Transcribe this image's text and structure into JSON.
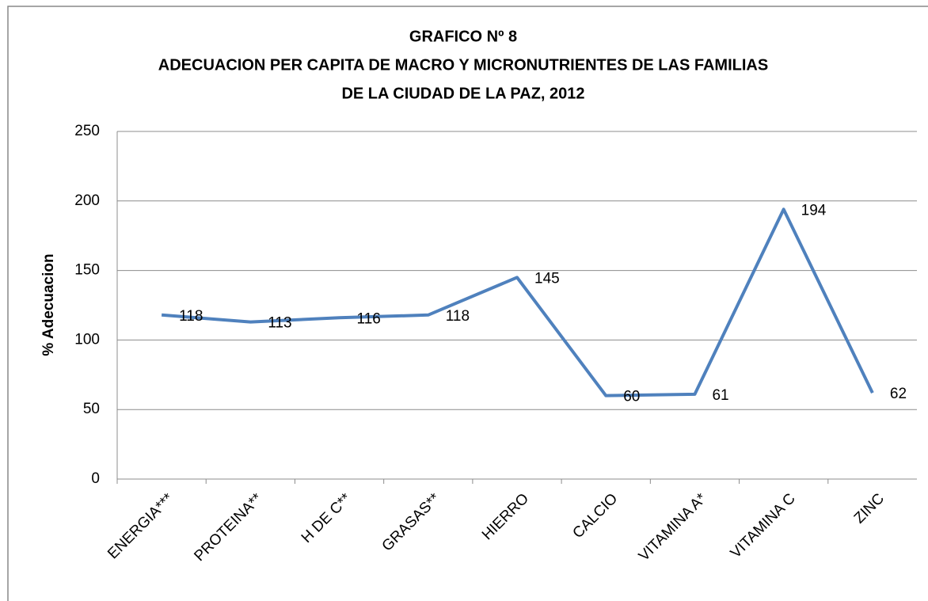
{
  "chart_data": {
    "type": "line",
    "title": [
      "GRAFICO Nº 8",
      "ADECUACION PER CAPITA DE MACRO Y MICRONUTRIENTES DE LAS FAMILIAS",
      "DE LA CIUDAD DE LA PAZ, 2012"
    ],
    "y_label": "% Adecuacion",
    "categories": [
      "ENERGIA***",
      "PROTEINA**",
      "H DE C**",
      "GRASAS**",
      "HIERRO",
      "CALCIO",
      "VITAMINA A*",
      "VITAMINA C",
      "ZINC"
    ],
    "series": [
      {
        "name": "% Adecuacion",
        "color": "#4f81bd",
        "values": [
          118,
          113,
          116,
          118,
          145,
          60,
          61,
          194,
          62
        ]
      }
    ],
    "ylim": [
      0,
      250
    ],
    "yticks": [
      0,
      50,
      100,
      150,
      200,
      250
    ],
    "grid": true,
    "data_labels": true,
    "legend": false
  }
}
